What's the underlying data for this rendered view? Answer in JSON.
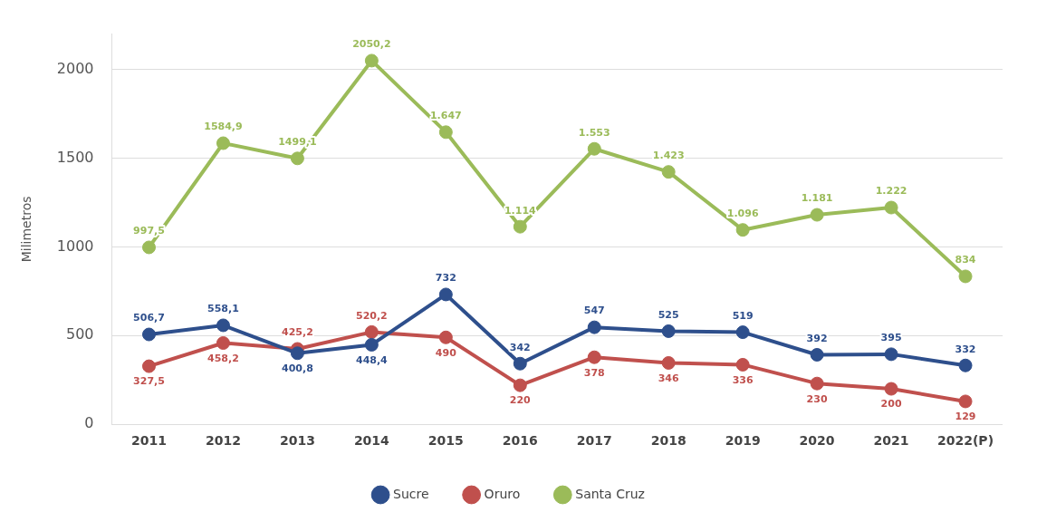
{
  "chart_data": {
    "type": "line",
    "ylabel": "Milimetros",
    "categories": [
      "2011",
      "2012",
      "2013",
      "2014",
      "2015",
      "2016",
      "2017",
      "2018",
      "2019",
      "2020",
      "2021",
      "2022(P)"
    ],
    "series": [
      {
        "name": "Sucre",
        "color": "#2e4f8c",
        "values": [
          506.7,
          558.1,
          400.8,
          448.4,
          732,
          342,
          547,
          525,
          519,
          392,
          395,
          332
        ],
        "value_labels": [
          "506,7",
          "558,1",
          "400,8",
          "448,4",
          "732",
          "342",
          "547",
          "525",
          "519",
          "392",
          "395",
          "332"
        ]
      },
      {
        "name": "Oruro",
        "color": "#c0504d",
        "values": [
          327.5,
          458.2,
          425.2,
          520.2,
          490,
          220,
          378,
          346,
          336,
          230,
          200,
          129
        ],
        "value_labels": [
          "327,5",
          "458,2",
          "425,2",
          "520,2",
          "490",
          "220",
          "378",
          "346",
          "336",
          "230",
          "200",
          "129"
        ]
      },
      {
        "name": "Santa Cruz",
        "color": "#9bbb59",
        "values": [
          997.5,
          1584.9,
          1499.1,
          2050.2,
          1647,
          1114,
          1553,
          1423,
          1096,
          1181,
          1222,
          834
        ],
        "value_labels": [
          "997,5",
          "1584,9",
          "1499,1",
          "2050,2",
          "1.647",
          "1.114",
          "1.553",
          "1.423",
          "1.096",
          "1.181",
          "1.222",
          "834"
        ]
      }
    ],
    "ylim": [
      0,
      2200
    ],
    "yticks": [
      0,
      500,
      1000,
      1500,
      2000
    ],
    "grid": "y",
    "legend": "bottom",
    "marker": "circle",
    "line_style": "solid"
  }
}
